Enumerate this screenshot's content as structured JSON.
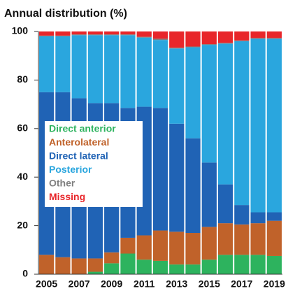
{
  "chart_data": {
    "type": "stacked_bar",
    "title": "Annual distribution (%)",
    "categories": [
      "2005",
      null,
      "2007",
      null,
      "2009",
      null,
      "2011",
      null,
      "2013",
      null,
      "2015",
      null,
      "2017",
      null,
      "2019"
    ],
    "series": [
      {
        "name": "Direct anterior",
        "color": "#2db35e",
        "values": [
          0,
          0,
          0,
          1,
          4.5,
          8.5,
          6,
          5.5,
          4,
          4,
          6,
          8,
          8,
          8,
          7.5
        ]
      },
      {
        "name": "Anterolateral",
        "color": "#c0622a",
        "values": [
          8,
          7,
          6.5,
          5.5,
          4.5,
          6.5,
          10,
          12.5,
          13.5,
          13,
          13.5,
          13,
          12.5,
          13,
          14.5
        ]
      },
      {
        "name": "Direct lateral",
        "color": "#2063b5",
        "values": [
          67,
          68,
          66,
          64,
          61.5,
          53.5,
          53,
          50.5,
          44.5,
          39,
          26.5,
          16,
          8,
          4.5,
          3.5
        ]
      },
      {
        "name": "Posterior",
        "color": "#2aa6de",
        "values": [
          23,
          23,
          26,
          28,
          28,
          30,
          28.5,
          28,
          31,
          37.5,
          48.5,
          58,
          67.5,
          71.5,
          71.5
        ]
      },
      {
        "name": "Other",
        "color": "#808080",
        "values": [
          0.3,
          0.3,
          0.3,
          0.3,
          0.3,
          0.3,
          0.3,
          0.5,
          0.3,
          0.3,
          0.3,
          0.3,
          0.3,
          0.3,
          0.3
        ]
      },
      {
        "name": "Missing",
        "color": "#e8262a",
        "values": [
          1.7,
          1.7,
          1.2,
          1.2,
          1.2,
          1.2,
          2.2,
          3,
          6.7,
          6.2,
          5.2,
          4.7,
          3.7,
          2.7,
          2.7
        ]
      }
    ],
    "ylim": [
      0,
      100
    ],
    "yticks": [
      0,
      20,
      40,
      60,
      80,
      100
    ],
    "legend": "left"
  }
}
